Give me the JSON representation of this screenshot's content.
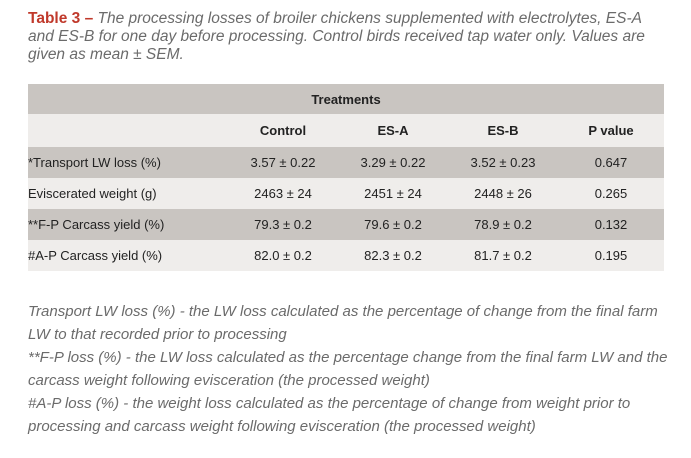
{
  "caption": {
    "label": "Table 3",
    "dash": " – ",
    "text": "The processing losses of broiler chickens supplemented with electrolytes, ES-A and ES-B for one day before processing. Control birds received tap water only. Values are given as mean ± SEM."
  },
  "table": {
    "group_header": "Treatments",
    "columns": [
      "",
      "Control",
      "ES-A",
      "ES-B",
      "P value"
    ],
    "rows": [
      {
        "label": "*Transport LW loss (%)",
        "values": [
          "3.57 ± 0.22",
          "3.29 ± 0.22",
          "3.52 ± 0.23",
          "0.647"
        ]
      },
      {
        "label": "Eviscerated weight (g)",
        "values": [
          "2463 ± 24",
          "2451 ± 24",
          "2448 ± 26",
          "0.265"
        ]
      },
      {
        "label": "**F-P Carcass yield (%)",
        "values": [
          "79.3 ± 0.2",
          "79.6 ± 0.2",
          "78.9 ± 0.2",
          "0.132"
        ]
      },
      {
        "label": "#A-P Carcass yield (%)",
        "values": [
          "82.0 ± 0.2",
          "82.3 ± 0.2",
          "81.7 ± 0.2",
          "0.195"
        ]
      }
    ]
  },
  "footnotes": [
    "Transport LW loss (%) - the LW loss calculated as the percentage of change from the final farm LW to that recorded prior to processing",
    "**F-P loss (%) - the LW loss calculated as the percentage change from the final farm LW and the carcass weight following evisceration (the processed weight)",
    "#A-P loss (%) - the weight loss calculated as the percentage of change from weight prior to processing and carcass weight following evisceration (the processed weight)"
  ],
  "colors": {
    "accent": "#c0392b",
    "band_dark": "#c9c5c1",
    "band_light": "#efedeb",
    "caption_text": "#6b6b6b"
  }
}
